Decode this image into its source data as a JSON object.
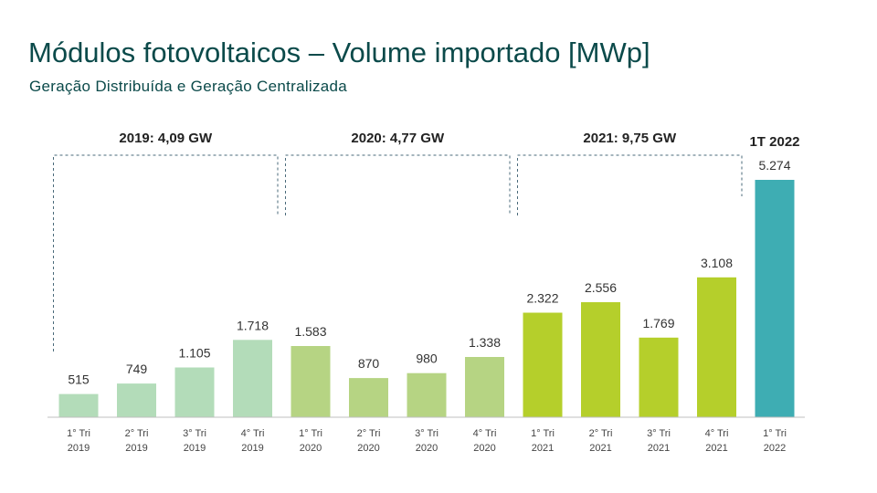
{
  "title": "Módulos fotovoltaicos – Volume importado [MWp]",
  "subtitle": "Geração Distribuída e Geração Centralizada",
  "chart_data": {
    "type": "bar",
    "title": "Módulos fotovoltaicos – Volume importado [MWp]",
    "subtitle": "Geração Distribuída e Geração Centralizada",
    "xlabel": "",
    "ylabel": "",
    "ylim": [
      0,
      5500
    ],
    "grid": false,
    "legend": "none",
    "categories": [
      [
        "1° Tri",
        "2019"
      ],
      [
        "2° Tri",
        "2019"
      ],
      [
        "3° Tri",
        "2019"
      ],
      [
        "4° Tri",
        "2019"
      ],
      [
        "1° Tri",
        "2020"
      ],
      [
        "2° Tri",
        "2020"
      ],
      [
        "3° Tri",
        "2020"
      ],
      [
        "4° Tri",
        "2020"
      ],
      [
        "1° Tri",
        "2021"
      ],
      [
        "2° Tri",
        "2021"
      ],
      [
        "3° Tri",
        "2021"
      ],
      [
        "4° Tri",
        "2021"
      ],
      [
        "1° Tri",
        "2022"
      ]
    ],
    "values": [
      515,
      749,
      1105,
      1718,
      1583,
      870,
      980,
      1338,
      2322,
      2556,
      1769,
      3108,
      5274
    ],
    "value_labels": [
      "515",
      "749",
      "1.105",
      "1.718",
      "1.583",
      "870",
      "980",
      "1.338",
      "2.322",
      "2.556",
      "1.769",
      "3.108",
      "5.274"
    ],
    "groups": [
      {
        "label": "2019: 4,09 GW",
        "start": 0,
        "end": 3,
        "color": "#b3dcb9"
      },
      {
        "label": "2020: 4,77 GW",
        "start": 4,
        "end": 7,
        "color": "#b6d483"
      },
      {
        "label": "2021: 9,75 GW",
        "start": 8,
        "end": 11,
        "color": "#b5cf2b"
      },
      {
        "label": "1T 2022",
        "start": 12,
        "end": 12,
        "color": "#3eadb3"
      }
    ]
  }
}
